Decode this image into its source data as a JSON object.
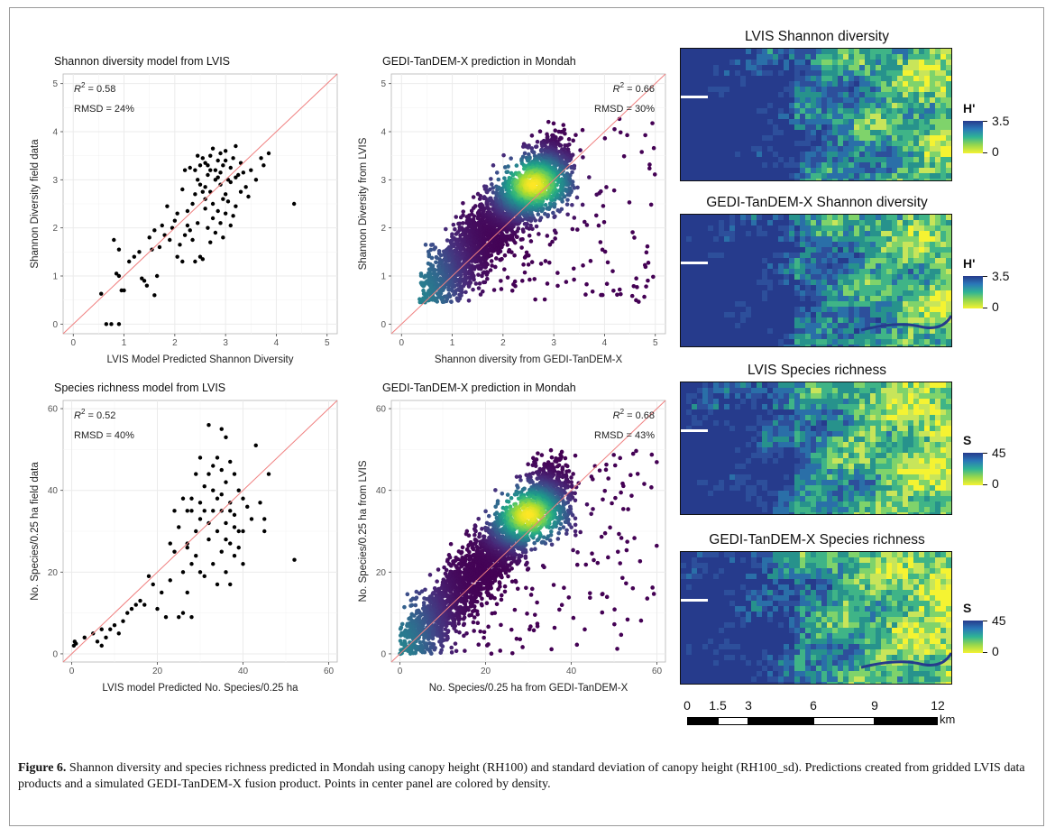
{
  "figure": {
    "caption_label": "Figure 6.",
    "caption_text": " Shannon diversity and species richness predicted in Mondah using canopy height (RH100) and standard deviation of canopy height (RH100_sd). Predictions created from gridded LVIS data products and a simulated GEDI-TanDEM-X fusion product. Points in center panel are colored by density."
  },
  "colors": {
    "one_to_one_line": "#f08080",
    "points": "#000000",
    "density_low": "#440154",
    "density_high": "#fde725",
    "grid": "#ebebeb"
  },
  "chart_data": [
    {
      "id": "shannon-lvis",
      "type": "scatter",
      "title": "Shannon diversity model from LVIS",
      "xlabel": "LVIS Model Predicted Shannon Diversity",
      "ylabel": "Shannon Diversity field data",
      "xlim": [
        -0.2,
        5.2
      ],
      "ylim": [
        -0.2,
        5.2
      ],
      "xticks": [
        0,
        1,
        2,
        3,
        4,
        5
      ],
      "yticks": [
        0,
        1,
        2,
        3,
        4,
        5
      ],
      "r2_label": "R",
      "r2_sup": "2",
      "r2_value": " = 0.58",
      "rmsd": "RMSD = 24%",
      "stat_position": "top-left",
      "grid": true,
      "one_to_one_line": true,
      "points": [
        [
          0.55,
          0.63
        ],
        [
          0.65,
          0.0
        ],
        [
          0.75,
          0.0
        ],
        [
          0.9,
          0.0
        ],
        [
          0.8,
          1.75
        ],
        [
          0.9,
          1.55
        ],
        [
          0.85,
          1.05
        ],
        [
          0.9,
          1.0
        ],
        [
          0.95,
          0.7
        ],
        [
          1.0,
          0.7
        ],
        [
          1.1,
          1.3
        ],
        [
          1.2,
          1.4
        ],
        [
          1.3,
          1.5
        ],
        [
          1.35,
          0.95
        ],
        [
          1.4,
          0.9
        ],
        [
          1.45,
          0.8
        ],
        [
          1.5,
          1.8
        ],
        [
          1.55,
          1.55
        ],
        [
          1.6,
          0.6
        ],
        [
          1.65,
          1.0
        ],
        [
          1.7,
          1.6
        ],
        [
          1.75,
          2.05
        ],
        [
          1.8,
          1.85
        ],
        [
          1.9,
          1.75
        ],
        [
          1.95,
          2.0
        ],
        [
          2.0,
          2.15
        ],
        [
          2.05,
          1.4
        ],
        [
          2.1,
          1.65
        ],
        [
          2.15,
          1.3
        ],
        [
          2.2,
          1.85
        ],
        [
          2.25,
          2.35
        ],
        [
          2.3,
          1.95
        ],
        [
          2.35,
          1.75
        ],
        [
          2.4,
          1.3
        ],
        [
          2.45,
          2.1
        ],
        [
          2.5,
          1.4
        ],
        [
          2.55,
          1.35
        ],
        [
          2.6,
          2.6
        ],
        [
          2.65,
          2.0
        ],
        [
          2.7,
          1.7
        ],
        [
          2.75,
          2.2
        ],
        [
          2.8,
          1.9
        ],
        [
          2.85,
          2.35
        ],
        [
          2.9,
          2.1
        ],
        [
          2.95,
          1.8
        ],
        [
          3.0,
          2.3
        ],
        [
          3.05,
          2.55
        ],
        [
          3.1,
          2.05
        ],
        [
          3.2,
          2.45
        ],
        [
          3.3,
          2.75
        ],
        [
          2.3,
          3.25
        ],
        [
          2.4,
          3.2
        ],
        [
          2.45,
          3.0
        ],
        [
          2.5,
          3.3
        ],
        [
          2.55,
          3.45
        ],
        [
          2.6,
          3.35
        ],
        [
          2.65,
          3.1
        ],
        [
          2.7,
          3.5
        ],
        [
          2.75,
          3.65
        ],
        [
          2.8,
          3.2
        ],
        [
          2.85,
          3.4
        ],
        [
          2.9,
          3.55
        ],
        [
          2.95,
          3.3
        ],
        [
          3.0,
          3.6
        ],
        [
          3.05,
          3.0
        ],
        [
          3.1,
          3.25
        ],
        [
          3.15,
          3.45
        ],
        [
          3.2,
          3.7
        ],
        [
          3.25,
          3.1
        ],
        [
          3.3,
          3.35
        ],
        [
          2.4,
          2.7
        ],
        [
          2.5,
          2.9
        ],
        [
          2.6,
          2.85
        ],
        [
          2.7,
          2.75
        ],
        [
          2.8,
          3.0
        ],
        [
          2.9,
          2.9
        ],
        [
          3.0,
          2.7
        ],
        [
          3.1,
          2.95
        ],
        [
          3.2,
          3.05
        ],
        [
          3.4,
          2.85
        ],
        [
          3.5,
          3.2
        ],
        [
          3.6,
          3.0
        ],
        [
          3.7,
          3.45
        ],
        [
          3.75,
          3.3
        ],
        [
          3.85,
          3.55
        ],
        [
          2.2,
          3.2
        ],
        [
          2.35,
          2.5
        ],
        [
          2.6,
          2.4
        ],
        [
          2.75,
          2.5
        ],
        [
          2.95,
          2.6
        ],
        [
          4.35,
          2.5
        ],
        [
          2.45,
          3.5
        ],
        [
          2.65,
          3.3
        ],
        [
          2.85,
          3.05
        ],
        [
          3.35,
          3.15
        ],
        [
          2.15,
          2.8
        ],
        [
          2.05,
          2.3
        ],
        [
          2.25,
          2.05
        ],
        [
          1.6,
          1.95
        ],
        [
          1.85,
          2.45
        ],
        [
          2.55,
          2.75
        ],
        [
          3.15,
          2.25
        ],
        [
          3.45,
          2.65
        ],
        [
          2.7,
          3.2
        ],
        [
          3.0,
          3.4
        ],
        [
          2.9,
          3.15
        ]
      ]
    },
    {
      "id": "shannon-gedi",
      "type": "scatter",
      "title": "GEDI-TanDEM-X prediction in Mondah",
      "xlabel": "Shannon diversity from GEDI-TanDEM-X",
      "ylabel": "Shannon Diversity from LVIS",
      "xlim": [
        -0.2,
        5.2
      ],
      "ylim": [
        -0.2,
        5.2
      ],
      "xticks": [
        0,
        1,
        2,
        3,
        4,
        5
      ],
      "yticks": [
        0,
        1,
        2,
        3,
        4,
        5
      ],
      "r2_label": "R",
      "r2_sup": "2",
      "r2_value": " = 0.66",
      "rmsd": "RMSD = 30%",
      "stat_position": "top-right",
      "grid": true,
      "one_to_one_line": true,
      "colored_by": "density",
      "density_peak": [
        2.6,
        2.9
      ],
      "points_range": {
        "x": [
          0.35,
          5.0
        ],
        "y": [
          0.45,
          4.3
        ]
      }
    },
    {
      "id": "richness-lvis",
      "type": "scatter",
      "title": "Species richness model from LVIS",
      "xlabel": "LVIS model Predicted No. Species/0.25 ha",
      "ylabel": "No. Species/0.25 ha field data",
      "xlim": [
        -2,
        62
      ],
      "ylim": [
        -2,
        62
      ],
      "xticks": [
        0,
        20,
        40,
        60
      ],
      "yticks": [
        0,
        20,
        40,
        60
      ],
      "r2_label": "R",
      "r2_sup": "2",
      "r2_value": " = 0.52",
      "rmsd": "RMSD = 40%",
      "stat_position": "top-left",
      "grid": true,
      "one_to_one_line": true,
      "points": [
        [
          0.5,
          2
        ],
        [
          0.7,
          3
        ],
        [
          1.0,
          2.5
        ],
        [
          3,
          4
        ],
        [
          5,
          5
        ],
        [
          6,
          3
        ],
        [
          7,
          2
        ],
        [
          7,
          6
        ],
        [
          8,
          4
        ],
        [
          9,
          6
        ],
        [
          10,
          7
        ],
        [
          11,
          5
        ],
        [
          12,
          8
        ],
        [
          13,
          10
        ],
        [
          14,
          11
        ],
        [
          15,
          12
        ],
        [
          16,
          13
        ],
        [
          17,
          12
        ],
        [
          18,
          19
        ],
        [
          19,
          17
        ],
        [
          20,
          11
        ],
        [
          21,
          15
        ],
        [
          22,
          9
        ],
        [
          23,
          18
        ],
        [
          23,
          27
        ],
        [
          24,
          25
        ],
        [
          25,
          9
        ],
        [
          26,
          10
        ],
        [
          26,
          20
        ],
        [
          27,
          15
        ],
        [
          27,
          26
        ],
        [
          28,
          35
        ],
        [
          28,
          38
        ],
        [
          29,
          30
        ],
        [
          29,
          24
        ],
        [
          30,
          20
        ],
        [
          30,
          37
        ],
        [
          31,
          35
        ],
        [
          31,
          41
        ],
        [
          32,
          56
        ],
        [
          32,
          44
        ],
        [
          32,
          28
        ],
        [
          33,
          46
        ],
        [
          33,
          40
        ],
        [
          33,
          22
        ],
        [
          34,
          48
        ],
        [
          34,
          38
        ],
        [
          34,
          30
        ],
        [
          35,
          55
        ],
        [
          35,
          45
        ],
        [
          35,
          35
        ],
        [
          35,
          25
        ],
        [
          36,
          53
        ],
        [
          36,
          42
        ],
        [
          36,
          32
        ],
        [
          36,
          20
        ],
        [
          37,
          47
        ],
        [
          37,
          37
        ],
        [
          37,
          27
        ],
        [
          37,
          17
        ],
        [
          38,
          44
        ],
        [
          38,
          34
        ],
        [
          38,
          24
        ],
        [
          39,
          40
        ],
        [
          39,
          30
        ],
        [
          40,
          38
        ],
        [
          40,
          22
        ],
        [
          41,
          36
        ],
        [
          42,
          33
        ],
        [
          43,
          51
        ],
        [
          44,
          37
        ],
        [
          45,
          33
        ],
        [
          46,
          44
        ],
        [
          27,
          35
        ],
        [
          28,
          22
        ],
        [
          29,
          44
        ],
        [
          30,
          33
        ],
        [
          31,
          19
        ],
        [
          33,
          35
        ],
        [
          34,
          17
        ],
        [
          35,
          39
        ],
        [
          36,
          28
        ],
        [
          37,
          35
        ],
        [
          38,
          31
        ],
        [
          39,
          26
        ],
        [
          40,
          30
        ],
        [
          24,
          35
        ],
        [
          26,
          38
        ],
        [
          25,
          31
        ],
        [
          30,
          48
        ],
        [
          52,
          23
        ],
        [
          45,
          30
        ],
        [
          28,
          9
        ],
        [
          27,
          27
        ],
        [
          32,
          32
        ]
      ]
    },
    {
      "id": "richness-gedi",
      "type": "scatter",
      "title": "GEDI-TanDEM-X prediction in Mondah",
      "xlabel": "No. Species/0.25 ha from GEDI-TanDEM-X",
      "ylabel": "No. Species/0.25 ha from LVIS",
      "xlim": [
        -2,
        62
      ],
      "ylim": [
        -2,
        62
      ],
      "xticks": [
        0,
        20,
        40,
        60
      ],
      "yticks": [
        0,
        20,
        40,
        60
      ],
      "r2_label": "R",
      "r2_sup": "2",
      "r2_value": " = 0.68",
      "rmsd": "RMSD = 43%",
      "stat_position": "top-right",
      "grid": true,
      "one_to_one_line": true,
      "colored_by": "density",
      "density_peak": [
        30,
        34
      ],
      "points_range": {
        "x": [
          0,
          60
        ],
        "y": [
          0,
          50
        ]
      }
    }
  ],
  "maps": [
    {
      "id": "lvis-shannon",
      "title": "LVIS Shannon diversity",
      "legend_title": "H'",
      "legend_max": "3.5",
      "legend_min": "0"
    },
    {
      "id": "gedi-shannon",
      "title": "GEDI-TanDEM-X Shannon diversity",
      "legend_title": "H'",
      "legend_max": "3.5",
      "legend_min": "0"
    },
    {
      "id": "lvis-richness",
      "title": "LVIS Species richness",
      "legend_title": "S",
      "legend_max": "45",
      "legend_min": "0"
    },
    {
      "id": "gedi-richness",
      "title": "GEDI-TanDEM-X Species richness",
      "legend_title": "S",
      "legend_max": "45",
      "legend_min": "0"
    }
  ],
  "scalebar": {
    "labels": [
      "0",
      "1.5",
      "3",
      "6",
      "9",
      "12"
    ],
    "values": [
      0,
      1.5,
      3,
      6,
      9,
      12
    ],
    "unit": "km"
  }
}
